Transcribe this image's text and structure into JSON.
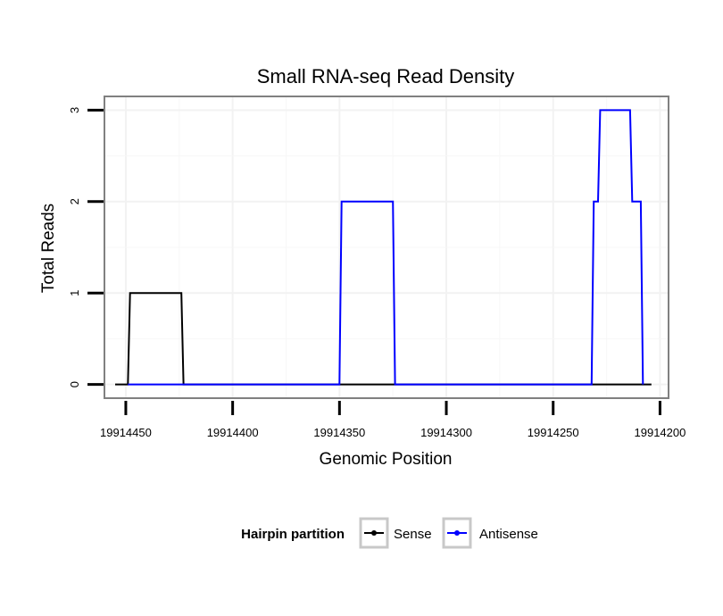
{
  "chart_data": {
    "type": "line",
    "title": "Small RNA-seq Read Density",
    "xlabel": "Genomic Position",
    "ylabel": "Total Reads",
    "xlim": [
      19914460,
      19914196
    ],
    "ylim": [
      -0.15,
      3.15
    ],
    "x_reversed": true,
    "x_ticks": [
      19914450,
      19914400,
      19914350,
      19914300,
      19914250,
      19914200
    ],
    "x_tick_labels": [
      "19914450",
      "19914400",
      "19914350",
      "19914300",
      "19914250",
      "19914200"
    ],
    "y_ticks": [
      0,
      1,
      2,
      3
    ],
    "y_tick_labels": [
      "0",
      "1",
      "2",
      "3"
    ],
    "grid": true,
    "legend": {
      "title": "Hairpin partition",
      "placement": "bottom",
      "entries": [
        {
          "name": "Sense",
          "color": "#000000"
        },
        {
          "name": "Antisense",
          "color": "#0000ff"
        }
      ]
    },
    "series": [
      {
        "name": "Sense",
        "color": "#000000",
        "x": [
          19914455,
          19914449,
          19914448,
          19914424,
          19914423,
          19914204
        ],
        "y": [
          0,
          0,
          1,
          1,
          0,
          0
        ]
      },
      {
        "name": "Antisense",
        "color": "#0000ff",
        "x": [
          19914449,
          19914425,
          19914350,
          19914349,
          19914325,
          19914324,
          19914232,
          19914231,
          19914229,
          19914228,
          19914214,
          19914213,
          19914209,
          19914208
        ],
        "y": [
          0,
          0,
          0,
          2,
          2,
          0,
          0,
          2,
          2,
          3,
          3,
          2,
          2,
          0
        ]
      }
    ]
  }
}
